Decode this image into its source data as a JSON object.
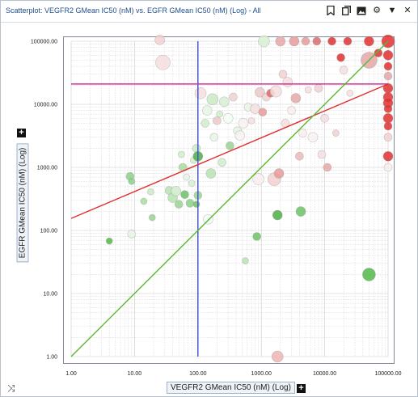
{
  "window": {
    "title": "Scatterplot: VEGFR2 GMean IC50 (nM) vs. EGFR GMean IC50 (nM) (Log) - All",
    "icons": [
      "bookmark-icon",
      "copy-icon",
      "image-icon",
      "gear-icon",
      "dropdown-icon",
      "close-icon"
    ]
  },
  "controls": {
    "shuffle_icon": "shuffle-icon",
    "add_icon": "plus-icon"
  },
  "chart_data": {
    "type": "scatter",
    "title": "",
    "xlabel": "VEGFR2 GMean IC50 (nM) (Log)",
    "ylabel": "EGFR GMean IC50 (nM) (Log)",
    "xscale": "log",
    "yscale": "log",
    "xlim": [
      1,
      100000
    ],
    "ylim": [
      1,
      100000
    ],
    "xticks": [
      "1.00",
      "10.00",
      "100.00",
      "1000.00",
      "10000.00",
      "100000.00"
    ],
    "yticks": [
      "1.00",
      "10.00",
      "100.00",
      "1000.00",
      "10000.00",
      "100000.00"
    ],
    "grid": true,
    "reference_lines": [
      {
        "type": "vertical",
        "x": 100,
        "color": "#3c4fc8"
      },
      {
        "type": "horizontal",
        "y": 21000,
        "color": "#d0359b"
      },
      {
        "type": "fit",
        "from": [
          1,
          155
        ],
        "to": [
          100000,
          21000
        ],
        "color": "#e03030"
      },
      {
        "type": "identity",
        "from": [
          1,
          1
        ],
        "to": [
          100000,
          100000
        ],
        "color": "#5ab832"
      }
    ],
    "points": [
      {
        "x": 4,
        "y": 68,
        "s": 4,
        "c": "#52b848"
      },
      {
        "x": 8.5,
        "y": 720,
        "s": 5,
        "c": "#8bd08a"
      },
      {
        "x": 9,
        "y": 600,
        "s": 4,
        "c": "#8bd08a"
      },
      {
        "x": 9,
        "y": 88,
        "s": 5,
        "c": "#e8f5e6"
      },
      {
        "x": 14,
        "y": 290,
        "s": 4,
        "c": "#a8dc9e"
      },
      {
        "x": 18,
        "y": 410,
        "s": 4,
        "c": "#c9eac3"
      },
      {
        "x": 19,
        "y": 160,
        "s": 4,
        "c": "#9ad293"
      },
      {
        "x": 25,
        "y": 105000,
        "s": 6,
        "c": "#f2d0d0"
      },
      {
        "x": 28,
        "y": 46000,
        "s": 9,
        "c": "#f6dede"
      },
      {
        "x": 35,
        "y": 430,
        "s": 5,
        "c": "#b7e3b0"
      },
      {
        "x": 40,
        "y": 330,
        "s": 6,
        "c": "#b7e3b0"
      },
      {
        "x": 45,
        "y": 420,
        "s": 6,
        "c": "#cfeec9"
      },
      {
        "x": 50,
        "y": 260,
        "s": 5,
        "c": "#9ad293"
      },
      {
        "x": 55,
        "y": 1600,
        "s": 4,
        "c": "#cfeec9"
      },
      {
        "x": 58,
        "y": 1000,
        "s": 5,
        "c": "#a8dc9e"
      },
      {
        "x": 62,
        "y": 370,
        "s": 5,
        "c": "#6cc266"
      },
      {
        "x": 66,
        "y": 700,
        "s": 4,
        "c": "#e8f5e6"
      },
      {
        "x": 75,
        "y": 270,
        "s": 5,
        "c": "#8bd08a"
      },
      {
        "x": 80,
        "y": 560,
        "s": 4,
        "c": "#d8f0d3"
      },
      {
        "x": 85,
        "y": 1300,
        "s": 4,
        "c": "#cfeec9"
      },
      {
        "x": 95,
        "y": 2000,
        "s": 5,
        "c": "#c9eac3"
      },
      {
        "x": 100,
        "y": 1500,
        "s": 6,
        "c": "#4cae44"
      },
      {
        "x": 100,
        "y": 360,
        "s": 5,
        "c": "#9ad293"
      },
      {
        "x": 95,
        "y": 260,
        "s": 4,
        "c": "#6cc266"
      },
      {
        "x": 110,
        "y": 15000,
        "s": 7,
        "c": "#f6dede"
      },
      {
        "x": 130,
        "y": 5000,
        "s": 5,
        "c": "#cfeec9"
      },
      {
        "x": 140,
        "y": 8000,
        "s": 6,
        "c": "#e6f4e3"
      },
      {
        "x": 145,
        "y": 150,
        "s": 6,
        "c": "#f5fbf4"
      },
      {
        "x": 160,
        "y": 800,
        "s": 6,
        "c": "#b7e3b0"
      },
      {
        "x": 170,
        "y": 12000,
        "s": 7,
        "c": "#c9eac3"
      },
      {
        "x": 180,
        "y": 3000,
        "s": 5,
        "c": "#e8f5e6"
      },
      {
        "x": 200,
        "y": 5500,
        "s": 5,
        "c": "#ecc8c8"
      },
      {
        "x": 220,
        "y": 7000,
        "s": 4,
        "c": "#cfeec9"
      },
      {
        "x": 240,
        "y": 1200,
        "s": 5,
        "c": "#cfeec9"
      },
      {
        "x": 260,
        "y": 11000,
        "s": 6,
        "c": "#d8f0d3"
      },
      {
        "x": 300,
        "y": 6000,
        "s": 6,
        "c": "#f5fbf4"
      },
      {
        "x": 320,
        "y": 2200,
        "s": 5,
        "c": "#9ad293"
      },
      {
        "x": 360,
        "y": 13000,
        "s": 5,
        "c": "#f2d0d0"
      },
      {
        "x": 420,
        "y": 3800,
        "s": 5,
        "c": "#e6f4e3"
      },
      {
        "x": 460,
        "y": 3200,
        "s": 6,
        "c": "#f7f2f2"
      },
      {
        "x": 520,
        "y": 5000,
        "s": 6,
        "c": "#f7f2f2"
      },
      {
        "x": 560,
        "y": 33,
        "s": 4,
        "c": "#b7e3b0"
      },
      {
        "x": 620,
        "y": 9000,
        "s": 5,
        "c": "#e6f4e3"
      },
      {
        "x": 700,
        "y": 5500,
        "s": 4,
        "c": "#f6dede"
      },
      {
        "x": 800,
        "y": 8500,
        "s": 6,
        "c": "#f6dede"
      },
      {
        "x": 850,
        "y": 80,
        "s": 5,
        "c": "#6cc266"
      },
      {
        "x": 900,
        "y": 650,
        "s": 7,
        "c": "#f9eded"
      },
      {
        "x": 950,
        "y": 15500,
        "s": 6,
        "c": "#ecc8c8"
      },
      {
        "x": 1050,
        "y": 7500,
        "s": 5,
        "c": "#e89a9a"
      },
      {
        "x": 1100,
        "y": 100000,
        "s": 7,
        "c": "#d8f0d3"
      },
      {
        "x": 1200,
        "y": 13000,
        "s": 5,
        "c": "#f2d0d0"
      },
      {
        "x": 1400,
        "y": 15000,
        "s": 5,
        "c": "#dc6a6a"
      },
      {
        "x": 1600,
        "y": 650,
        "s": 8,
        "c": "#f2d0d0"
      },
      {
        "x": 1700,
        "y": 16000,
        "s": 7,
        "c": "#f6dede"
      },
      {
        "x": 1800,
        "y": 175,
        "s": 6,
        "c": "#4cae44"
      },
      {
        "x": 1800,
        "y": 1,
        "s": 7,
        "c": "#f0b4b4"
      },
      {
        "x": 1900,
        "y": 800,
        "s": 6,
        "c": "#e89a9a"
      },
      {
        "x": 2000,
        "y": 100000,
        "s": 6,
        "c": "#e4a7a7"
      },
      {
        "x": 2200,
        "y": 30000,
        "s": 5,
        "c": "#f2d0d0"
      },
      {
        "x": 2400,
        "y": 5000,
        "s": 5,
        "c": "#f6dede"
      },
      {
        "x": 2600,
        "y": 22500,
        "s": 6,
        "c": "#f6dede"
      },
      {
        "x": 3000,
        "y": 8000,
        "s": 5,
        "c": "#f9eded"
      },
      {
        "x": 3300,
        "y": 100000,
        "s": 6,
        "c": "#e89a9a"
      },
      {
        "x": 3500,
        "y": 12500,
        "s": 6,
        "c": "#e4a7a7"
      },
      {
        "x": 4000,
        "y": 1500,
        "s": 5,
        "c": "#eab8b8"
      },
      {
        "x": 4200,
        "y": 200,
        "s": 6,
        "c": "#6cc266"
      },
      {
        "x": 4500,
        "y": 3500,
        "s": 5,
        "c": "#f9eded"
      },
      {
        "x": 5000,
        "y": 100000,
        "s": 5,
        "c": "#e89a9a"
      },
      {
        "x": 5500,
        "y": 17000,
        "s": 4,
        "c": "#f6dede"
      },
      {
        "x": 6500,
        "y": 3000,
        "s": 6,
        "c": "#f7f2f2"
      },
      {
        "x": 7500,
        "y": 100000,
        "s": 5,
        "c": "#dc6a6a"
      },
      {
        "x": 8000,
        "y": 18000,
        "s": 5,
        "c": "#f2d0d0"
      },
      {
        "x": 9000,
        "y": 1600,
        "s": 5,
        "c": "#f6dede"
      },
      {
        "x": 10000,
        "y": 6000,
        "s": 5,
        "c": "#f6dede"
      },
      {
        "x": 11000,
        "y": 1000,
        "s": 5,
        "c": "#e4a7a7"
      },
      {
        "x": 13000,
        "y": 100000,
        "s": 5,
        "c": "#e03030"
      },
      {
        "x": 15000,
        "y": 3500,
        "s": 4,
        "c": "#f2d0d0"
      },
      {
        "x": 18000,
        "y": 55000,
        "s": 5,
        "c": "#e03030"
      },
      {
        "x": 20000,
        "y": 35000,
        "s": 5,
        "c": "#f6dede"
      },
      {
        "x": 23000,
        "y": 100000,
        "s": 5,
        "c": "#e03030"
      },
      {
        "x": 25000,
        "y": 15000,
        "s": 4,
        "c": "#f6dede"
      },
      {
        "x": 50000,
        "y": 100000,
        "s": 6,
        "c": "#e03030"
      },
      {
        "x": 50000,
        "y": 50000,
        "s": 10,
        "c": "#e4a7a7"
      },
      {
        "x": 50000,
        "y": 20,
        "s": 8,
        "c": "#52b848"
      },
      {
        "x": 70000,
        "y": 65000,
        "s": 5,
        "c": "#e03030"
      },
      {
        "x": 100000,
        "y": 100000,
        "s": 8,
        "c": "#e03030"
      },
      {
        "x": 100000,
        "y": 60000,
        "s": 6,
        "c": "#e03030"
      },
      {
        "x": 100000,
        "y": 40000,
        "s": 5,
        "c": "#e03030"
      },
      {
        "x": 100000,
        "y": 28000,
        "s": 5,
        "c": "#e4a7a7"
      },
      {
        "x": 100000,
        "y": 18000,
        "s": 6,
        "c": "#e03030"
      },
      {
        "x": 100000,
        "y": 13000,
        "s": 6,
        "c": "#e03030"
      },
      {
        "x": 100000,
        "y": 10500,
        "s": 6,
        "c": "#e03030"
      },
      {
        "x": 100000,
        "y": 8500,
        "s": 5,
        "c": "#e03030"
      },
      {
        "x": 100000,
        "y": 6000,
        "s": 6,
        "c": "#e03030"
      },
      {
        "x": 100000,
        "y": 4500,
        "s": 5,
        "c": "#e03030"
      },
      {
        "x": 100000,
        "y": 3000,
        "s": 5,
        "c": "#f2d0d0"
      },
      {
        "x": 100000,
        "y": 1500,
        "s": 6,
        "c": "#e03030"
      },
      {
        "x": 100000,
        "y": 1000,
        "s": 5,
        "c": "#f9eded"
      }
    ]
  }
}
